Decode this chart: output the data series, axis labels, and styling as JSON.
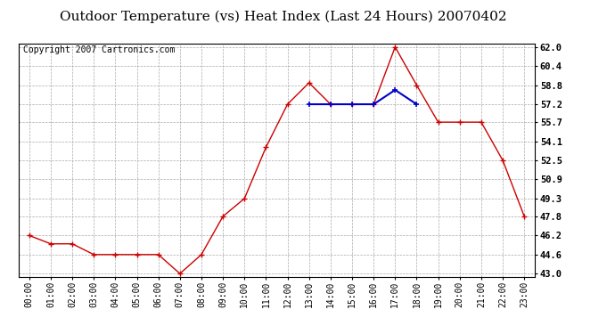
{
  "title": "Outdoor Temperature (vs) Heat Index (Last 24 Hours) 20070402",
  "copyright": "Copyright 2007 Cartronics.com",
  "x_labels": [
    "00:00",
    "01:00",
    "02:00",
    "03:00",
    "04:00",
    "05:00",
    "06:00",
    "07:00",
    "08:00",
    "09:00",
    "10:00",
    "11:00",
    "12:00",
    "13:00",
    "14:00",
    "15:00",
    "16:00",
    "17:00",
    "18:00",
    "19:00",
    "20:00",
    "21:00",
    "22:00",
    "23:00"
  ],
  "temp_data": [
    46.2,
    45.5,
    45.5,
    44.6,
    44.6,
    44.6,
    44.6,
    43.0,
    44.6,
    47.8,
    49.3,
    53.6,
    57.2,
    59.0,
    57.2,
    57.2,
    57.2,
    62.0,
    58.8,
    55.7,
    55.7,
    55.7,
    52.5,
    47.8
  ],
  "heat_data": [
    null,
    null,
    null,
    null,
    null,
    null,
    null,
    null,
    null,
    null,
    null,
    null,
    null,
    57.2,
    57.2,
    57.2,
    57.2,
    58.4,
    57.2,
    null,
    null,
    null,
    null,
    null
  ],
  "y_ticks": [
    43.0,
    44.6,
    46.2,
    47.8,
    49.3,
    50.9,
    52.5,
    54.1,
    55.7,
    57.2,
    58.8,
    60.4,
    62.0
  ],
  "y_min": 43.0,
  "y_max": 62.0,
  "temp_color": "#cc0000",
  "heat_color": "#0000cc",
  "bg_color": "#ffffff",
  "grid_color": "#aaaaaa",
  "title_fontsize": 11,
  "copyright_fontsize": 7,
  "tick_fontsize": 7,
  "ytick_fontsize": 7.5
}
